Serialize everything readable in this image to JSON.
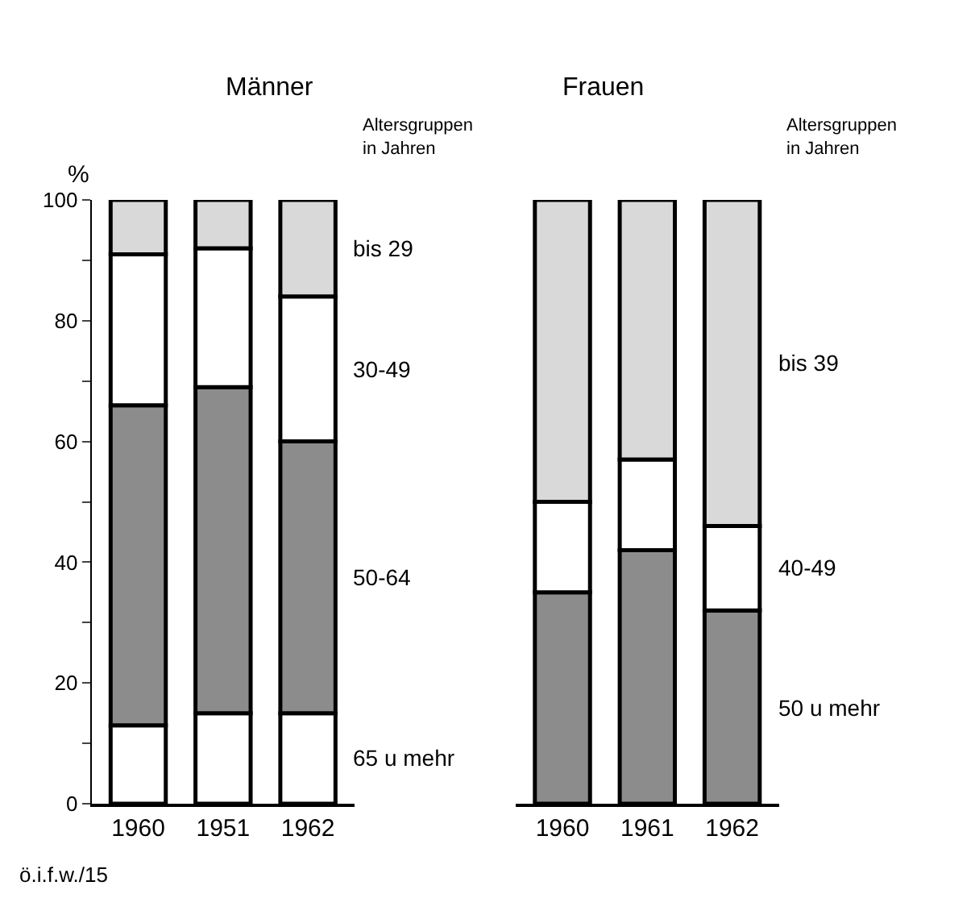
{
  "chart_data": [
    {
      "type": "bar",
      "title": "Männer",
      "legend_title": "Altersgruppen in Jahren",
      "ylabel": "%",
      "stacked": true,
      "categories": [
        "1960",
        "1951",
        "1962"
      ],
      "series": [
        {
          "name": "65 u mehr",
          "color": "#ffffff",
          "values": [
            13,
            15,
            15
          ]
        },
        {
          "name": "50-64",
          "color": "#8c8c8c",
          "values": [
            53,
            54,
            45
          ]
        },
        {
          "name": "30-49",
          "color": "#ffffff",
          "values": [
            25,
            23,
            24
          ]
        },
        {
          "name": "bis 29",
          "color": "#d9d9d9",
          "values": [
            9,
            8,
            16
          ]
        }
      ],
      "ylim": [
        0,
        100
      ],
      "yticks": [
        0,
        {
          "value": 10,
          "label": null
        },
        20,
        {
          "value": 30,
          "label": null
        },
        40,
        {
          "value": 50,
          "label": null
        },
        60,
        {
          "value": 70,
          "label": null
        },
        80,
        {
          "value": 90,
          "label": null
        },
        100
      ],
      "annotations": [
        "ö.i.f.w./15"
      ]
    },
    {
      "type": "bar",
      "title": "Frauen",
      "legend_title": "Altersgruppen in Jahren",
      "stacked": true,
      "categories": [
        "1960",
        "1961",
        "1962"
      ],
      "series": [
        {
          "name": "50 u mehr",
          "color": "#8c8c8c",
          "values": [
            35,
            42,
            32
          ]
        },
        {
          "name": "40-49",
          "color": "#ffffff",
          "values": [
            15,
            15,
            14
          ]
        },
        {
          "name": "bis 39",
          "color": "#d9d9d9",
          "values": [
            50,
            43,
            54
          ]
        }
      ],
      "ylim": [
        0,
        100
      ],
      "tick_labels": "x"
    }
  ]
}
